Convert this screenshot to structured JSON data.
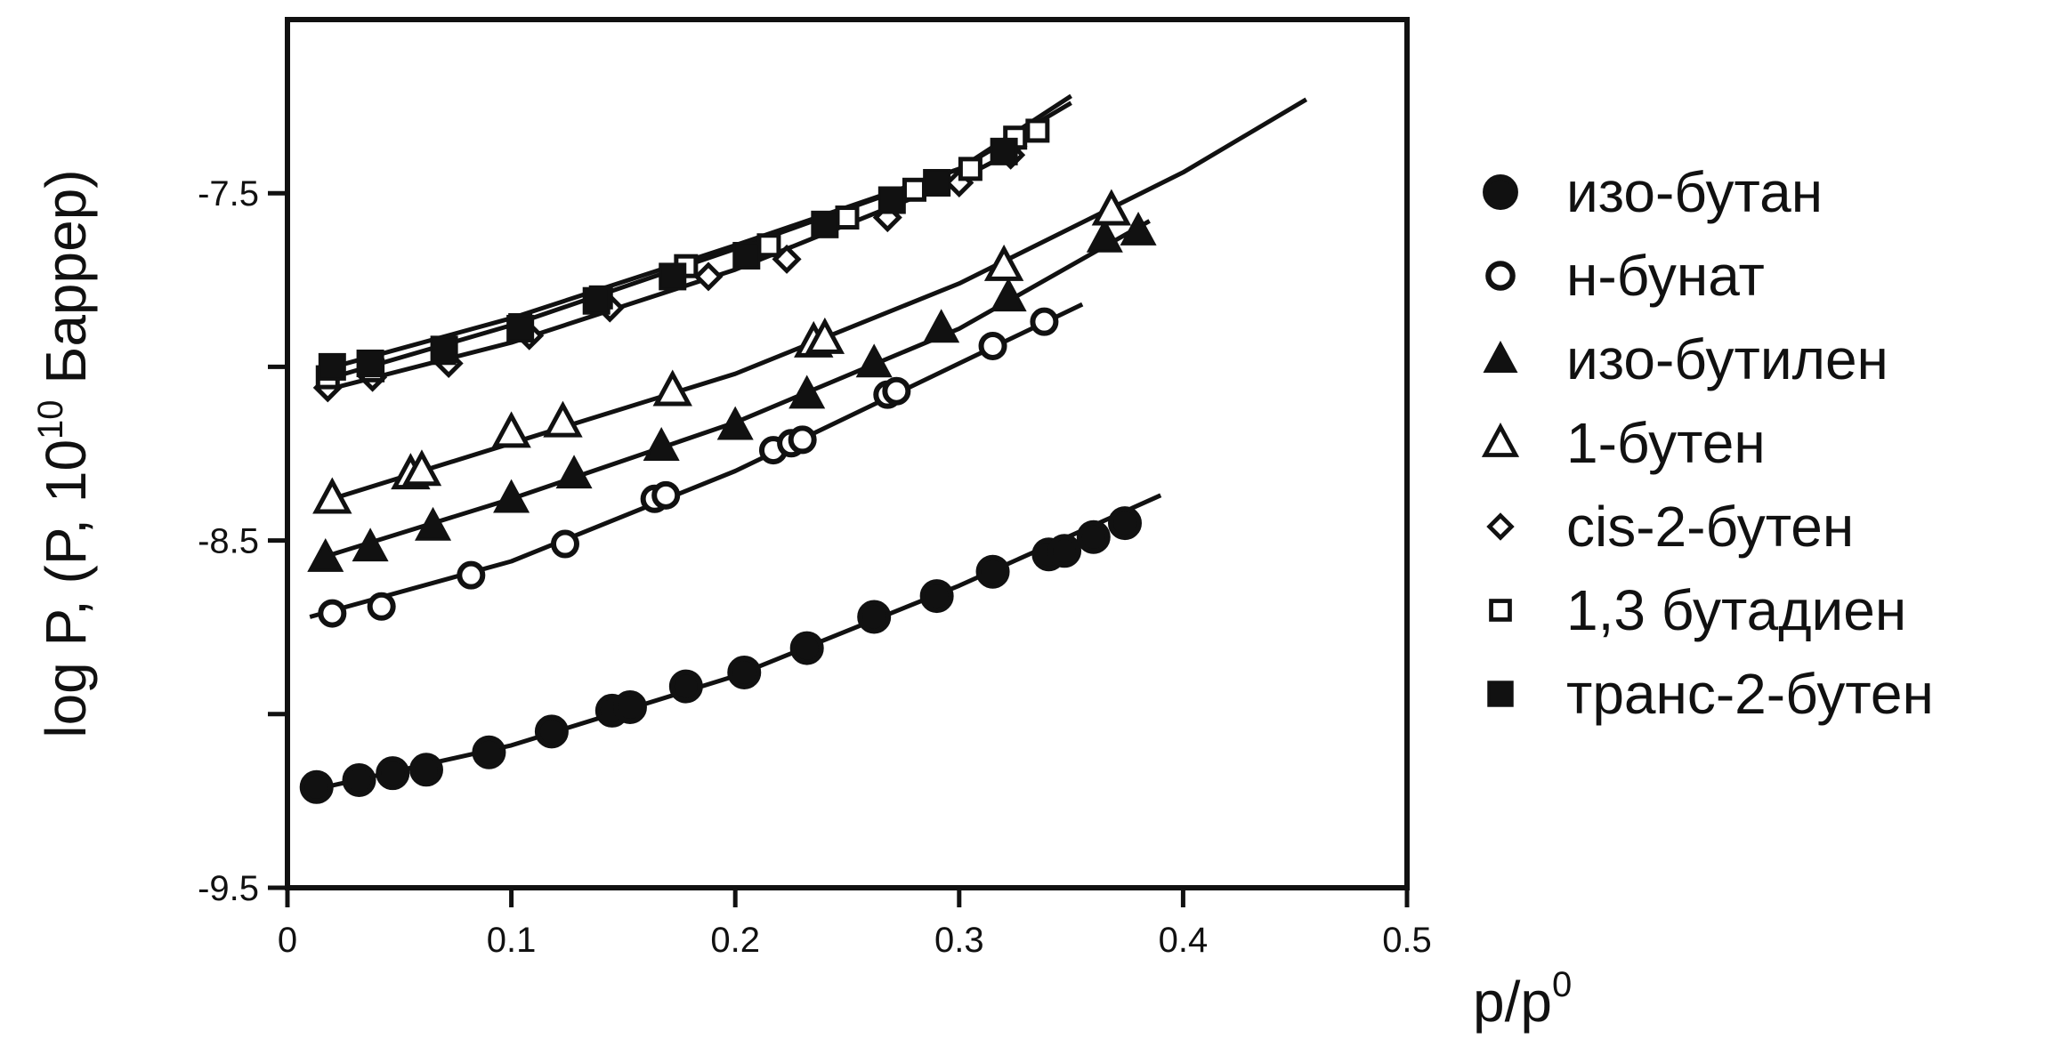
{
  "chart_data": {
    "type": "scatter",
    "ylabel": "log P, (P, 10",
    "ylabel_sup": "10",
    "ylabel_suffix": " Баррер)",
    "xlabel": "p/p",
    "xlabel_sup": "0",
    "xlim": [
      0,
      0.5
    ],
    "ylim": [
      -9.5,
      -7.0
    ],
    "x_ticks": [
      0,
      0.1,
      0.2,
      0.3,
      0.4,
      0.5
    ],
    "x_tick_labels": [
      "0",
      "0.1",
      "0.2",
      "0.3",
      "0.4",
      "0.5"
    ],
    "y_ticks": [
      -9.5,
      -9.0,
      -8.5,
      -8.0,
      -7.5
    ],
    "y_tick_labels": [
      "-9.5",
      "",
      "-8.5",
      "",
      "-7.5"
    ],
    "grid": false,
    "legend_position": "right",
    "series": [
      {
        "name": "изо-бутан",
        "marker": "circle-filled",
        "x": [
          0.013,
          0.032,
          0.047,
          0.062,
          0.09,
          0.118,
          0.145,
          0.153,
          0.178,
          0.204,
          0.232,
          0.262,
          0.29,
          0.315,
          0.34,
          0.347,
          0.36,
          0.374
        ],
        "y": [
          -9.21,
          -9.19,
          -9.17,
          -9.16,
          -9.11,
          -9.05,
          -8.99,
          -8.98,
          -8.92,
          -8.88,
          -8.81,
          -8.72,
          -8.66,
          -8.59,
          -8.54,
          -8.53,
          -8.49,
          -8.45
        ],
        "fit_x": [
          0.01,
          0.1,
          0.2,
          0.3,
          0.39
        ],
        "fit_y": [
          -9.22,
          -9.09,
          -8.89,
          -8.63,
          -8.37
        ]
      },
      {
        "name": "н-бунат",
        "marker": "circle-open",
        "x": [
          0.02,
          0.042,
          0.082,
          0.124,
          0.164,
          0.169,
          0.217,
          0.225,
          0.23,
          0.268,
          0.272,
          0.315,
          0.338
        ],
        "y": [
          -8.71,
          -8.69,
          -8.6,
          -8.51,
          -8.38,
          -8.37,
          -8.24,
          -8.22,
          -8.21,
          -8.08,
          -8.07,
          -7.94,
          -7.87
        ],
        "fit_x": [
          0.01,
          0.1,
          0.2,
          0.3,
          0.355
        ],
        "fit_y": [
          -8.72,
          -8.56,
          -8.3,
          -7.99,
          -7.82
        ]
      },
      {
        "name": "изо-бутилен",
        "marker": "triangle-filled",
        "x": [
          0.017,
          0.037,
          0.065,
          0.1,
          0.128,
          0.167,
          0.2,
          0.232,
          0.262,
          0.292,
          0.322,
          0.365,
          0.38
        ],
        "y": [
          -8.55,
          -8.52,
          -8.46,
          -8.38,
          -8.31,
          -8.23,
          -8.17,
          -8.08,
          -7.99,
          -7.89,
          -7.8,
          -7.63,
          -7.61
        ],
        "fit_x": [
          0.015,
          0.1,
          0.2,
          0.3,
          0.385
        ],
        "fit_y": [
          -8.55,
          -8.38,
          -8.16,
          -7.89,
          -7.58
        ]
      },
      {
        "name": "1-бутен",
        "marker": "triangle-open",
        "x": [
          0.02,
          0.055,
          0.06,
          0.1,
          0.123,
          0.172,
          0.235,
          0.24,
          0.32,
          0.368
        ],
        "y": [
          -8.38,
          -8.31,
          -8.3,
          -8.19,
          -8.16,
          -8.07,
          -7.93,
          -7.92,
          -7.71,
          -7.55
        ],
        "fit_x": [
          0.015,
          0.1,
          0.2,
          0.3,
          0.4,
          0.455
        ],
        "fit_y": [
          -8.39,
          -8.22,
          -8.02,
          -7.76,
          -7.44,
          -7.23
        ]
      },
      {
        "name": "cis-2-бутен",
        "marker": "diamond-open",
        "x": [
          0.018,
          0.038,
          0.072,
          0.108,
          0.144,
          0.188,
          0.223,
          0.268,
          0.3,
          0.323
        ],
        "y": [
          -8.06,
          -8.03,
          -7.99,
          -7.91,
          -7.83,
          -7.74,
          -7.69,
          -7.57,
          -7.47,
          -7.39
        ],
        "fit_x": [
          0.015,
          0.1,
          0.2,
          0.3,
          0.33
        ],
        "fit_y": [
          -8.07,
          -7.93,
          -7.72,
          -7.46,
          -7.36
        ]
      },
      {
        "name": "1,3 бутадиен",
        "marker": "square-open",
        "x": [
          0.018,
          0.038,
          0.07,
          0.104,
          0.14,
          0.178,
          0.215,
          0.25,
          0.28,
          0.305,
          0.325,
          0.335
        ],
        "y": [
          -8.03,
          -8.01,
          -7.96,
          -7.88,
          -7.8,
          -7.71,
          -7.65,
          -7.57,
          -7.49,
          -7.43,
          -7.34,
          -7.32
        ],
        "fit_x": [
          0.015,
          0.1,
          0.2,
          0.3,
          0.35
        ],
        "fit_y": [
          -8.04,
          -7.88,
          -7.66,
          -7.43,
          -7.24
        ]
      },
      {
        "name": "транс-2-бутен",
        "marker": "square-filled",
        "x": [
          0.02,
          0.037,
          0.07,
          0.104,
          0.138,
          0.172,
          0.205,
          0.24,
          0.27,
          0.29,
          0.32
        ],
        "y": [
          -8.0,
          -7.99,
          -7.95,
          -7.89,
          -7.81,
          -7.74,
          -7.68,
          -7.59,
          -7.52,
          -7.47,
          -7.38
        ],
        "fit_x": [
          0.015,
          0.1,
          0.2,
          0.3,
          0.35
        ],
        "fit_y": [
          -8.01,
          -7.86,
          -7.65,
          -7.43,
          -7.22
        ]
      }
    ]
  }
}
